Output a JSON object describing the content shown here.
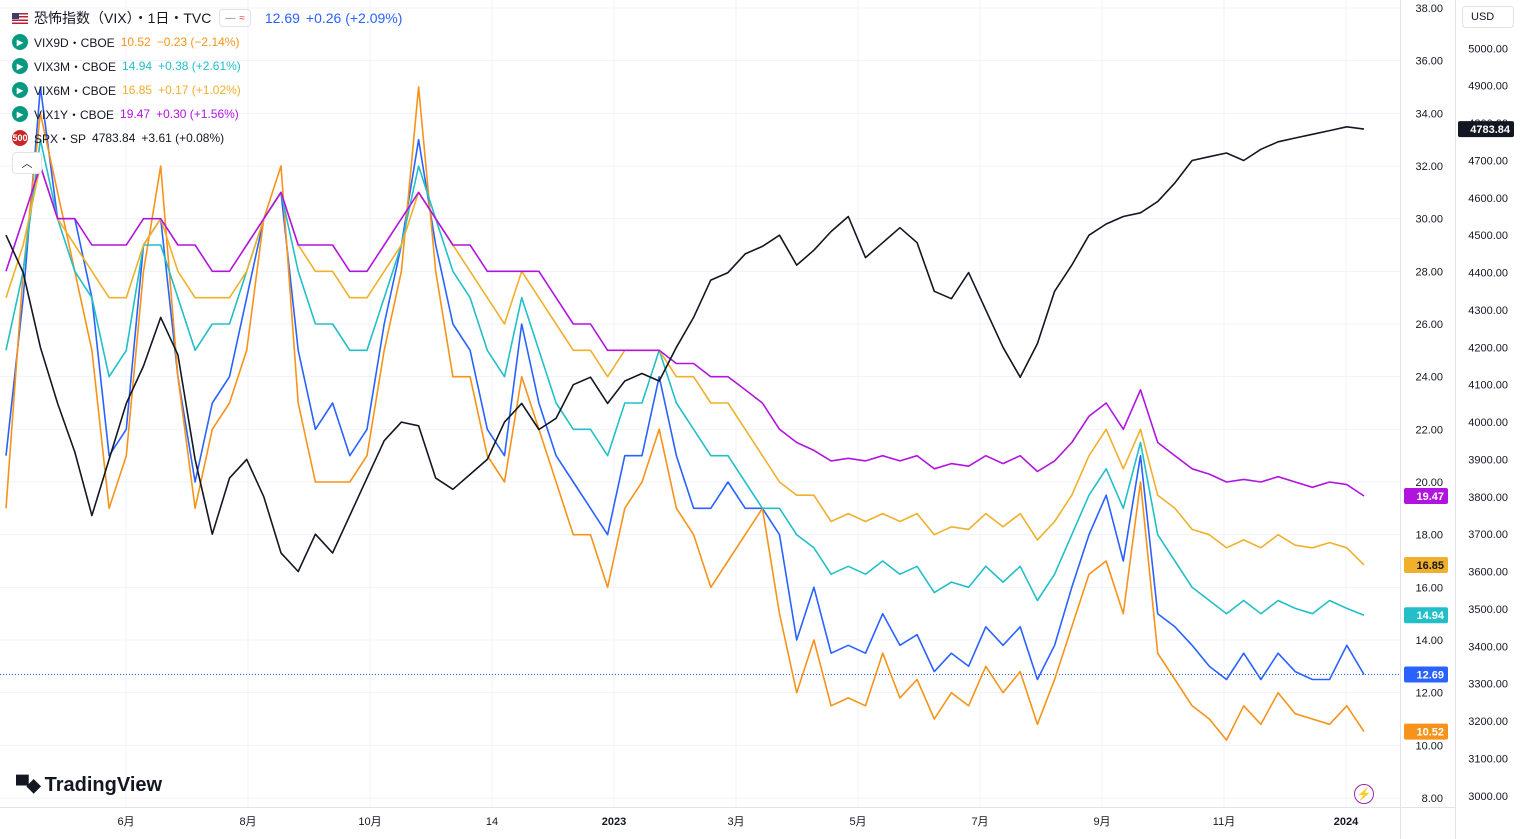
{
  "legend": {
    "main": {
      "flag_icon": "us-flag-icon",
      "title": "恐怖指数（VIX）・1日・TVC",
      "value": "12.69",
      "change": "+0.26 (+2.09%)",
      "color": "#2962ff"
    },
    "pill_icon": "≈",
    "rows": [
      {
        "symbol": "VIX9D・CBOE",
        "value": "10.52",
        "change": "−0.23 (−2.14%)",
        "color": "#f7931a",
        "icon": "play-icon",
        "icon_color": "#089981"
      },
      {
        "symbol": "VIX3M・CBOE",
        "value": "14.94",
        "change": "+0.38 (+2.61%)",
        "color": "#22bfc9",
        "icon": "play-icon",
        "icon_color": "#089981"
      },
      {
        "symbol": "VIX6M・CBOE",
        "value": "16.85",
        "change": "+0.17 (+1.02%)",
        "color": "#f0b02c",
        "icon": "play-icon",
        "icon_color": "#089981"
      },
      {
        "symbol": "VIX1Y・CBOE",
        "value": "19.47",
        "change": "+0.30 (+1.56%)",
        "color": "#b214e0",
        "icon": "play-icon",
        "icon_color": "#089981"
      },
      {
        "symbol": "SPX・SP",
        "value": "4783.84",
        "change": "+3.61 (+0.08%)",
        "color": "#131722",
        "icon": "500",
        "icon_color": "#c62828"
      }
    ],
    "collapse_icon": "chevron-up-icon"
  },
  "currency": "USD",
  "logo_text": "TradingView",
  "chart_data": {
    "type": "line",
    "x_tick_labels": [
      "6月",
      "8月",
      "10月",
      "14",
      "2023",
      "3月",
      "5月",
      "7月",
      "9月",
      "11月",
      "2024"
    ],
    "right_axis": {
      "labels": [
        "38.00",
        "36.00",
        "34.00",
        "32.00",
        "30.00",
        "28.00",
        "26.00",
        "24.00",
        "22.00",
        "20.00",
        "18.00",
        "16.00",
        "14.00",
        "12.00",
        "10.00",
        "8.00"
      ],
      "min": 8,
      "max": 38
    },
    "spx_axis": {
      "labels": [
        "5000.00",
        "4900.00",
        "4800.00",
        "4700.00",
        "4600.00",
        "4500.00",
        "4400.00",
        "4300.00",
        "4200.00",
        "4100.00",
        "4000.00",
        "3900.00",
        "3800.00",
        "3700.00",
        "3600.00",
        "3500.00",
        "3400.00",
        "3300.00",
        "3200.00",
        "3100.00",
        "3000.00"
      ],
      "min": 2994,
      "max": 5108
    },
    "last_value_labels": [
      {
        "text": "4783.84",
        "color": "#131722",
        "series": "SPX"
      },
      {
        "text": "19.47",
        "color": "#b214e0",
        "series": "VIX1Y"
      },
      {
        "text": "16.85",
        "color": "#f0b02c",
        "series": "VIX6M"
      },
      {
        "text": "14.94",
        "color": "#22bfc9",
        "series": "VIX3M"
      },
      {
        "text": "12.69",
        "color": "#2962ff",
        "series": "VIX"
      },
      {
        "text": "10.52",
        "color": "#f7931a",
        "series": "VIX9D"
      }
    ],
    "current_value_line": 12.69,
    "series": [
      {
        "name": "VIX",
        "color": "#2962ff",
        "axis": "left",
        "values": [
          21,
          27,
          35,
          30,
          30,
          27,
          21,
          22,
          29,
          30,
          24,
          20,
          23,
          24,
          27,
          30,
          31,
          25,
          22,
          23,
          21,
          22,
          26,
          29,
          33,
          29,
          26,
          25,
          22,
          21,
          26,
          23,
          21,
          20,
          19,
          18,
          21,
          21,
          24,
          21,
          19,
          19,
          20,
          19,
          19,
          18,
          14,
          16,
          13.5,
          13.8,
          13.5,
          15,
          13.8,
          14.2,
          12.8,
          13.5,
          13,
          14.5,
          13.8,
          14.5,
          12.5,
          13.8,
          16,
          18,
          19.5,
          17,
          21,
          15,
          14.5,
          13.8,
          13,
          12.5,
          13.5,
          12.5,
          13.5,
          12.8,
          12.5,
          12.5,
          13.8,
          12.69
        ]
      },
      {
        "name": "VIX9D",
        "color": "#f7931a",
        "axis": "left",
        "values": [
          19,
          28,
          34,
          31,
          28,
          25,
          19,
          21,
          28,
          32,
          24,
          19,
          22,
          23,
          25,
          30,
          32,
          23,
          20,
          20,
          20,
          21,
          25,
          28,
          35,
          28,
          24,
          24,
          21,
          20,
          24,
          22,
          20,
          18,
          18,
          16,
          19,
          20,
          22,
          19,
          18,
          16,
          17,
          18,
          19,
          15,
          12,
          14,
          11.5,
          11.8,
          11.5,
          13.5,
          11.8,
          12.5,
          11,
          12,
          11.5,
          13,
          12,
          12.8,
          10.8,
          12.5,
          14.5,
          16.5,
          17,
          15,
          20,
          13.5,
          12.5,
          11.5,
          11,
          10.2,
          11.5,
          10.8,
          12,
          11.2,
          11,
          10.8,
          11.5,
          10.52
        ]
      },
      {
        "name": "VIX3M",
        "color": "#22bfc9",
        "axis": "left",
        "values": [
          25,
          28,
          33,
          30,
          28,
          27,
          24,
          25,
          29,
          29,
          27,
          25,
          26,
          26,
          28,
          30,
          31,
          28,
          26,
          26,
          25,
          25,
          27,
          29,
          32,
          30,
          28,
          27,
          25,
          24,
          27,
          25,
          23,
          22,
          22,
          21,
          23,
          23,
          25,
          23,
          22,
          21,
          21,
          20,
          19,
          19,
          18,
          17.5,
          16.5,
          16.8,
          16.5,
          17,
          16.5,
          16.8,
          15.8,
          16.2,
          16,
          16.8,
          16.2,
          16.8,
          15.5,
          16.5,
          18,
          19.5,
          20.5,
          19,
          21.5,
          18,
          17,
          16,
          15.5,
          15,
          15.5,
          15,
          15.5,
          15.2,
          15,
          15.5,
          15.2,
          14.94
        ]
      },
      {
        "name": "VIX6M",
        "color": "#f0b02c",
        "axis": "left",
        "values": [
          27,
          29,
          32,
          30,
          29,
          28,
          27,
          27,
          29,
          30,
          28,
          27,
          27,
          27,
          28,
          30,
          31,
          29,
          28,
          28,
          27,
          27,
          28,
          29,
          31,
          30,
          29,
          28,
          27,
          26,
          28,
          27,
          26,
          25,
          25,
          24,
          25,
          25,
          25,
          24,
          24,
          23,
          23,
          22,
          21,
          20,
          19.5,
          19.5,
          18.5,
          18.8,
          18.5,
          18.8,
          18.5,
          18.8,
          18,
          18.3,
          18.2,
          18.8,
          18.3,
          18.8,
          17.8,
          18.5,
          19.5,
          21,
          22,
          20.5,
          22,
          19.5,
          19,
          18.2,
          18,
          17.5,
          17.8,
          17.5,
          18,
          17.6,
          17.5,
          17.7,
          17.5,
          16.85
        ]
      },
      {
        "name": "VIX1Y",
        "color": "#b214e0",
        "axis": "left",
        "values": [
          28,
          30,
          32,
          30,
          30,
          29,
          29,
          29,
          30,
          30,
          29,
          29,
          28,
          28,
          29,
          30,
          31,
          29,
          29,
          29,
          28,
          28,
          29,
          30,
          31,
          30,
          29,
          29,
          28,
          28,
          28,
          28,
          27,
          26,
          26,
          25,
          25,
          25,
          25,
          24.5,
          24.5,
          24,
          24,
          23.5,
          23,
          22,
          21.5,
          21.2,
          20.8,
          20.9,
          20.8,
          21,
          20.8,
          21,
          20.5,
          20.7,
          20.6,
          21,
          20.7,
          21,
          20.4,
          20.8,
          21.5,
          22.5,
          23,
          22,
          23.5,
          21.5,
          21,
          20.5,
          20.3,
          20,
          20.1,
          20,
          20.2,
          20,
          19.8,
          20,
          19.9,
          19.47
        ]
      },
      {
        "name": "SPX",
        "color": "#131722",
        "axis": "spx",
        "values": [
          4500,
          4400,
          4200,
          4050,
          3920,
          3750,
          3900,
          4050,
          4150,
          4280,
          4180,
          3900,
          3700,
          3850,
          3900,
          3800,
          3650,
          3600,
          3700,
          3650,
          3750,
          3850,
          3950,
          4000,
          3990,
          3850,
          3820,
          3860,
          3900,
          4000,
          4050,
          3980,
          4010,
          4100,
          4120,
          4050,
          4110,
          4130,
          4110,
          4200,
          4280,
          4380,
          4400,
          4450,
          4470,
          4500,
          4420,
          4460,
          4510,
          4550,
          4440,
          4480,
          4520,
          4480,
          4350,
          4330,
          4400,
          4300,
          4200,
          4120,
          4210,
          4350,
          4420,
          4500,
          4530,
          4550,
          4560,
          4590,
          4640,
          4700,
          4710,
          4720,
          4700,
          4730,
          4750,
          4760,
          4770,
          4780,
          4790,
          4783.84
        ]
      }
    ]
  }
}
